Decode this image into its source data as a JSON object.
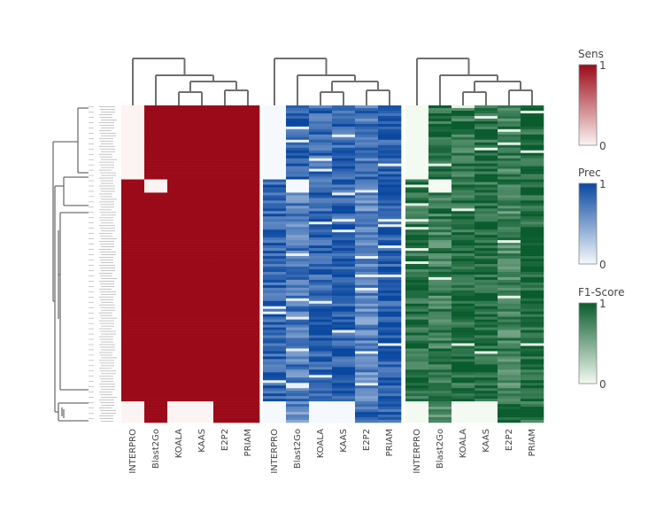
{
  "chart_data": {
    "type": "heatmap",
    "title": "",
    "panels": [
      {
        "name": "Sens",
        "colorscale": [
          "#fbf4f2",
          "#9b0a18"
        ],
        "range": [
          0,
          1
        ],
        "columns": [
          "INTERPRO",
          "Blast2Go",
          "KOALA",
          "KAAS",
          "E2P2",
          "PRIAM"
        ]
      },
      {
        "name": "Prec",
        "colorscale": [
          "#f5f9fd",
          "#0a48a0"
        ],
        "range": [
          0,
          1
        ],
        "columns": [
          "INTERPRO",
          "Blast2Go",
          "KOALA",
          "KAAS",
          "E2P2",
          "PRIAM"
        ]
      },
      {
        "name": "F1-Score",
        "colorscale": [
          "#f3faf1",
          "#0a5c2e"
        ],
        "range": [
          0,
          1
        ],
        "columns": [
          "INTERPRO",
          "Blast2Go",
          "KOALA",
          "KAAS",
          "E2P2",
          "PRIAM"
        ]
      }
    ],
    "row_count": 120,
    "row_groups": [
      {
        "rows": [
          0,
          27
        ],
        "Sens": [
          0,
          1,
          1,
          1,
          1,
          1
        ],
        "Prec": [
          0,
          0.88,
          0.8,
          0.85,
          0.75,
          0.9
        ],
        "F1-Score": [
          0,
          0.9,
          0.85,
          0.88,
          0.8,
          0.92
        ]
      },
      {
        "rows": [
          28,
          32
        ],
        "Sens": [
          1,
          0,
          1,
          1,
          1,
          1
        ],
        "Prec": [
          0.85,
          0,
          0.8,
          0.85,
          0.7,
          0.92
        ],
        "F1-Score": [
          0.9,
          0,
          0.85,
          0.88,
          0.78,
          0.93
        ]
      },
      {
        "rows": [
          33,
          111
        ],
        "Sens": [
          1,
          1,
          1,
          1,
          1,
          1
        ],
        "Prec": [
          0.85,
          0.7,
          0.85,
          0.88,
          0.65,
          0.9
        ],
        "F1-Score": [
          0.9,
          0.78,
          0.9,
          0.92,
          0.75,
          0.93
        ]
      },
      {
        "rows": [
          112,
          119
        ],
        "Sens": [
          0,
          1,
          0,
          0,
          1,
          1
        ],
        "Prec": [
          0,
          0.6,
          0,
          0,
          0.8,
          0.85
        ],
        "F1-Score": [
          0,
          0.7,
          0,
          0,
          0.85,
          0.88
        ]
      }
    ],
    "colorbar_ticks": [
      "0",
      "1"
    ]
  }
}
